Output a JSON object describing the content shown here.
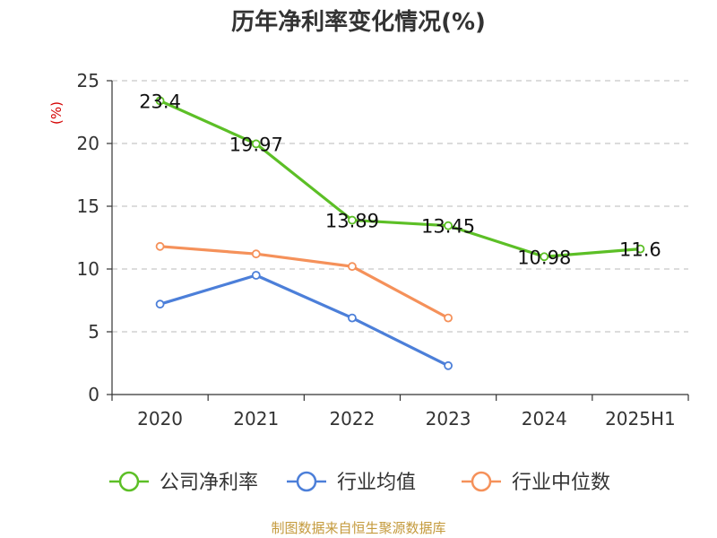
{
  "chart_data": {
    "type": "line",
    "title": "历年净利率变化情况(%)",
    "ylabel": "(%)",
    "xlabel": "",
    "categories": [
      "2020",
      "2021",
      "2022",
      "2023",
      "2024",
      "2025H1"
    ],
    "ylim": [
      0,
      25
    ],
    "yticks": [
      0,
      5,
      10,
      15,
      20,
      25
    ],
    "grid": true,
    "legend_position": "bottom",
    "series": [
      {
        "name": "公司净利率",
        "color": "#5cbf26",
        "values": [
          23.4,
          19.97,
          13.89,
          13.45,
          10.98,
          11.6
        ],
        "labels": [
          "23.4",
          "19.97",
          "13.89",
          "13.45",
          "10.98",
          "11.6"
        ],
        "show_labels": true
      },
      {
        "name": "行业均值",
        "color": "#4c7fd9",
        "values": [
          7.2,
          9.5,
          6.1,
          2.3,
          null,
          null
        ],
        "show_labels": false
      },
      {
        "name": "行业中位数",
        "color": "#f5915a",
        "values": [
          11.8,
          11.2,
          10.2,
          6.1,
          null,
          null
        ],
        "show_labels": false
      }
    ]
  },
  "footer": "制图数据来自恒生聚源数据库"
}
